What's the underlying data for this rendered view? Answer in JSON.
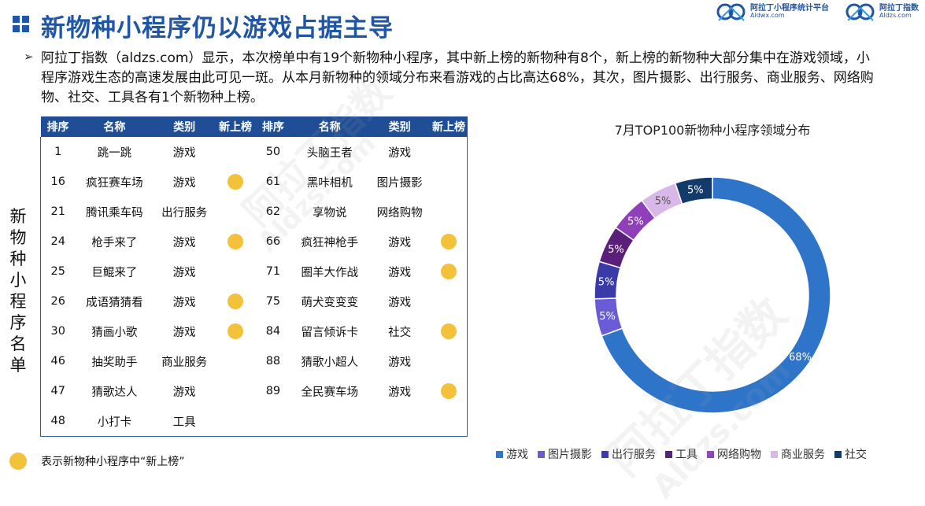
{
  "header": {
    "title": "新物种小程序仍以游戏占据主导",
    "logos": [
      {
        "name": "阿拉丁小程序统计平台",
        "url": "Aldwx.com"
      },
      {
        "name": "阿拉丁指数",
        "url": "Aldzs.com"
      }
    ]
  },
  "intro": {
    "bullet": "➢",
    "text": "阿拉丁指数（aldzs.com）显示，本次榜单中有19个新物种小程序，其中新上榜的新物种有8个，新上榜的新物种大部分集中在游戏领域，小程序游戏生态的高速发展由此可见一斑。从本月新物种的领域分布来看游戏的占比高达68%，其次，图片摄影、出行服务、商业服务、网络购物、社交、工具各有1个新物种上榜。"
  },
  "side_label": "新物种小程序名单",
  "table": {
    "headers": [
      "排序",
      "名称",
      "类别",
      "新上榜",
      "排序",
      "名称",
      "类别",
      "新上榜"
    ],
    "rows": [
      {
        "left": {
          "rank": "1",
          "name": "跳一跳",
          "category": "游戏",
          "new": false
        },
        "right": {
          "rank": "50",
          "name": "头脑王者",
          "category": "游戏",
          "new": false
        }
      },
      {
        "left": {
          "rank": "16",
          "name": "疯狂赛车场",
          "category": "游戏",
          "new": true
        },
        "right": {
          "rank": "61",
          "name": "黑咔相机",
          "category": "图片摄影",
          "new": false
        }
      },
      {
        "left": {
          "rank": "21",
          "name": "腾讯乘车码",
          "category": "出行服务",
          "new": false
        },
        "right": {
          "rank": "62",
          "name": "享物说",
          "category": "网络购物",
          "new": false
        }
      },
      {
        "left": {
          "rank": "24",
          "name": "枪手来了",
          "category": "游戏",
          "new": true
        },
        "right": {
          "rank": "66",
          "name": "疯狂神枪手",
          "category": "游戏",
          "new": true
        }
      },
      {
        "left": {
          "rank": "25",
          "name": "巨鲲来了",
          "category": "游戏",
          "new": false
        },
        "right": {
          "rank": "71",
          "name": "圈羊大作战",
          "category": "游戏",
          "new": true
        }
      },
      {
        "left": {
          "rank": "26",
          "name": "成语猜猜看",
          "category": "游戏",
          "new": true
        },
        "right": {
          "rank": "75",
          "name": "萌犬变变变",
          "category": "游戏",
          "new": false
        }
      },
      {
        "left": {
          "rank": "30",
          "name": "猜画小歌",
          "category": "游戏",
          "new": true
        },
        "right": {
          "rank": "84",
          "name": "留言倾诉卡",
          "category": "社交",
          "new": true
        }
      },
      {
        "left": {
          "rank": "46",
          "name": "抽奖助手",
          "category": "商业服务",
          "new": false
        },
        "right": {
          "rank": "88",
          "name": "猜歌小超人",
          "category": "游戏",
          "new": false
        }
      },
      {
        "left": {
          "rank": "47",
          "name": "猜歌达人",
          "category": "游戏",
          "new": false
        },
        "right": {
          "rank": "89",
          "name": "全民赛车场",
          "category": "游戏",
          "new": true
        }
      },
      {
        "left": {
          "rank": "48",
          "name": "小打卡",
          "category": "工具",
          "new": false
        },
        "right": null
      }
    ]
  },
  "legend_note": "表示新物种小程序中“新上榜”",
  "watermarks": [
    "阿拉丁指数",
    "Aldzs.com",
    "阿拉丁指数",
    "Aldzs.com"
  ],
  "chart_data": {
    "type": "pie",
    "style": "donut",
    "title": "7月TOP100新物种小程序领域分布",
    "legend_position": "bottom",
    "slices": [
      {
        "label": "游戏",
        "value": 68,
        "display": "68%",
        "color": "#2e75c9"
      },
      {
        "label": "图片摄影",
        "value": 5,
        "display": "5%",
        "color": "#6a5bd6"
      },
      {
        "label": "出行服务",
        "value": 5,
        "display": "5%",
        "color": "#3a3aa8"
      },
      {
        "label": "工具",
        "value": 5,
        "display": "5%",
        "color": "#5a1f78"
      },
      {
        "label": "网络购物",
        "value": 5,
        "display": "5%",
        "color": "#8f3fb8"
      },
      {
        "label": "商业服务",
        "value": 5,
        "display": "5%",
        "color": "#d8b8e8"
      },
      {
        "label": "社交",
        "value": 5,
        "display": "5%",
        "color": "#123a6b"
      }
    ]
  }
}
